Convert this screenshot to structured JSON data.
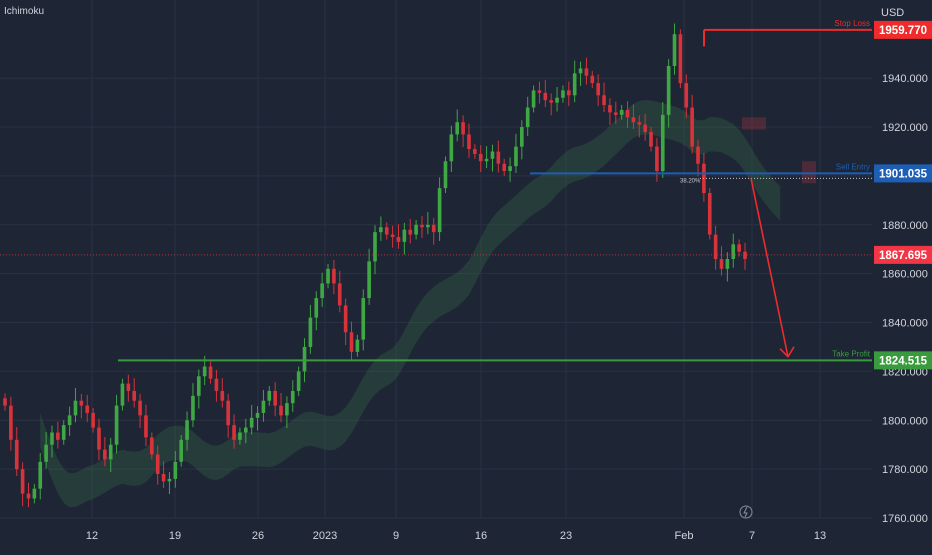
{
  "indicator_label": "Ichimoku",
  "currency_label": "USD",
  "colors": {
    "background": "#1e2535",
    "grid": "#2a3142",
    "up": "#3fa743",
    "down": "#d8323a",
    "stop": "#ef2b2b",
    "entry": "#1d5fb4",
    "profit": "#3a9b3e",
    "axis_text": "#d1d4dc",
    "price": "#f23645"
  },
  "chart_data": {
    "type": "candlestick",
    "title": "",
    "series_name": "Ichimoku",
    "y_axis": {
      "unit": "USD",
      "range": [
        1760,
        1963
      ],
      "ticks": [
        "1760.000",
        "1780.000",
        "1800.000",
        "1820.000",
        "1840.000",
        "1860.000",
        "1880.000",
        "1900.000",
        "1920.000",
        "1940.000"
      ]
    },
    "x_axis": {
      "ticks": [
        "12",
        "19",
        "26",
        "2023",
        "9",
        "16",
        "23",
        "Feb",
        "7",
        "13"
      ]
    },
    "levels": [
      {
        "name": "Stop Loss",
        "price": "1959.770",
        "value": 1959.77
      },
      {
        "name": "Sell Entry",
        "price": "1901.035",
        "value": 1901.035
      },
      {
        "name": "Take Profit",
        "price": "1824.515",
        "value": 1824.515
      }
    ],
    "current_price": {
      "price": "1867.695",
      "value": 1867.695
    },
    "fib_label": "38.20%",
    "projection": {
      "from": 1899,
      "to": 1826,
      "direction": "down"
    },
    "closes": [
      1806,
      1792,
      1780,
      1770,
      1768,
      1772,
      1783,
      1790,
      1795,
      1792,
      1798,
      1802,
      1808,
      1806,
      1803,
      1797,
      1788,
      1784,
      1790,
      1806,
      1815,
      1812,
      1808,
      1802,
      1793,
      1786,
      1778,
      1775,
      1776,
      1783,
      1792,
      1800,
      1810,
      1818,
      1822,
      1817,
      1812,
      1808,
      1798,
      1792,
      1795,
      1797,
      1801,
      1803,
      1808,
      1812,
      1806,
      1802,
      1807,
      1812,
      1820,
      1830,
      1842,
      1850,
      1856,
      1862,
      1856,
      1847,
      1836,
      1828,
      1833,
      1850,
      1865,
      1877,
      1879,
      1876,
      1875,
      1873,
      1878,
      1876,
      1880,
      1879,
      1880,
      1877,
      1895,
      1906,
      1917,
      1922,
      1917,
      1911,
      1909,
      1906,
      1907,
      1910,
      1905,
      1902,
      1904,
      1912,
      1920,
      1928,
      1935,
      1934,
      1931,
      1930,
      1932,
      1935,
      1933,
      1942,
      1944,
      1941,
      1938,
      1933,
      1929,
      1926,
      1925,
      1927,
      1924,
      1922,
      1921,
      1918,
      1912,
      1902,
      1925,
      1945,
      1958,
      1938,
      1928,
      1912,
      1905,
      1893,
      1876,
      1866,
      1862,
      1866,
      1872,
      1869,
      1866
    ]
  }
}
